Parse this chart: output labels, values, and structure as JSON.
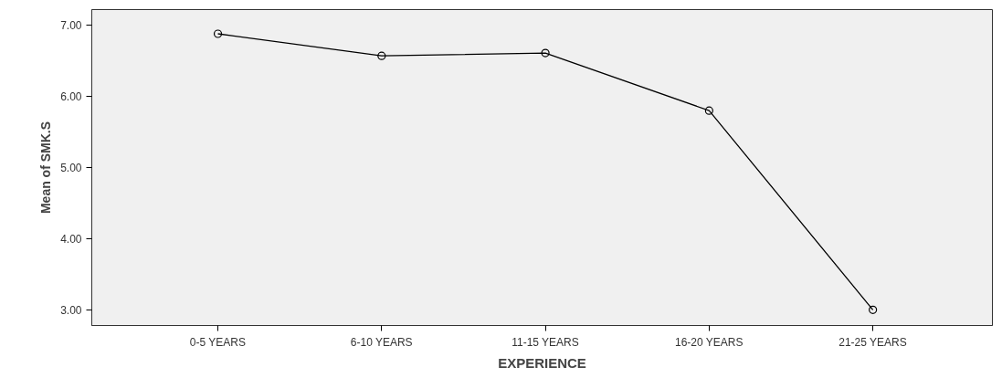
{
  "chart_data": {
    "type": "line",
    "xlabel": "EXPERIENCE",
    "ylabel": "Mean of SMK.S",
    "categories": [
      "0-5 YEARS",
      "6-10 YEARS",
      "11-15 YEARS",
      "16-20 YEARS",
      "21-25 YEARS"
    ],
    "series": [
      {
        "color": "#000000",
        "values": [
          6.88,
          6.57,
          6.61,
          5.8,
          3.0
        ]
      }
    ],
    "ylim": [
      2.78,
      7.22
    ],
    "yticks": [
      {
        "value": 3,
        "label": "3.00"
      },
      {
        "value": 4,
        "label": "4.00"
      },
      {
        "value": 5,
        "label": "5.00"
      },
      {
        "value": 6,
        "label": "6.00"
      },
      {
        "value": 7,
        "label": "7.00"
      }
    ],
    "grid": false,
    "marker": "circle",
    "line_style": "solid"
  }
}
